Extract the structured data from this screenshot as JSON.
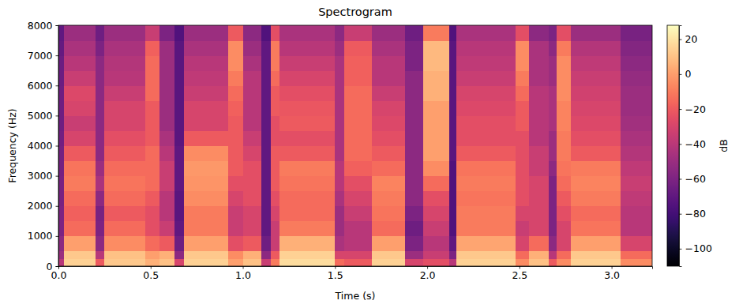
{
  "chart_data": {
    "type": "heatmap",
    "title": "Spectrogram",
    "xlabel": "Time (s)",
    "ylabel": "Frequency (Hz)",
    "xlim": [
      0,
      3.22
    ],
    "ylim": [
      0,
      8000
    ],
    "xticks": [
      {
        "value": 0,
        "label": "0.0"
      },
      0.5,
      {
        "value": 1,
        "label": "1.0"
      },
      1.5,
      {
        "value": 2,
        "label": "2.0"
      },
      2.5,
      {
        "value": 3,
        "label": "3.0"
      }
    ],
    "yticks": [
      0,
      1000,
      2000,
      3000,
      4000,
      5000,
      6000,
      7000,
      8000
    ],
    "x_bins": [
      0,
      0.03,
      0.2,
      0.25,
      0.47,
      0.55,
      0.63,
      0.68,
      0.92,
      1.0,
      1.1,
      1.15,
      1.2,
      1.5,
      1.55,
      1.7,
      1.88,
      1.98,
      2.12,
      2.16,
      2.48,
      2.55,
      2.66,
      2.7,
      2.78,
      3.05,
      3.22
    ],
    "y_bins": [
      0,
      250,
      500,
      1000,
      1500,
      2000,
      2500,
      3000,
      3500,
      4000,
      4500,
      5000,
      5500,
      6000,
      6500,
      7000,
      7500,
      8000
    ],
    "cells": [
      [
        -40,
        -50,
        -55,
        -60,
        -60,
        -62,
        -62,
        -63,
        -63,
        -64,
        -65,
        -65,
        -65,
        -66,
        -66,
        -68,
        -70
      ],
      [
        15,
        12,
        0,
        -15,
        -18,
        -15,
        -10,
        -12,
        -20,
        -30,
        -35,
        -30,
        -28,
        -35,
        -40,
        -45,
        -50
      ],
      [
        -20,
        -40,
        -55,
        -60,
        -62,
        -55,
        -45,
        -50,
        -55,
        -55,
        -55,
        -55,
        -55,
        -55,
        -55,
        -60,
        -65
      ],
      [
        12,
        10,
        -5,
        -15,
        -20,
        -15,
        -12,
        -15,
        -20,
        -25,
        -30,
        -30,
        -35,
        -40,
        -42,
        -45,
        -50
      ],
      [
        5,
        0,
        -15,
        -25,
        -25,
        -20,
        -15,
        -15,
        -15,
        -20,
        -20,
        -20,
        -15,
        -15,
        -15,
        -18,
        -35
      ],
      [
        10,
        5,
        -20,
        -35,
        -40,
        -40,
        -35,
        -35,
        -40,
        -45,
        -50,
        -50,
        -50,
        -50,
        -50,
        -50,
        -60
      ],
      [
        -30,
        -55,
        -65,
        -70,
        -72,
        -72,
        -70,
        -70,
        -70,
        -72,
        -72,
        -72,
        -72,
        -72,
        -72,
        -72,
        -75
      ],
      [
        15,
        12,
        0,
        -10,
        -10,
        -5,
        -3,
        -2,
        -5,
        -20,
        -30,
        -30,
        -35,
        -38,
        -40,
        -45,
        -50
      ],
      [
        0,
        -5,
        -25,
        -35,
        -35,
        -30,
        -25,
        -20,
        -20,
        -20,
        -20,
        -18,
        -15,
        -10,
        -5,
        -5,
        -20
      ],
      [
        10,
        5,
        -20,
        -30,
        -30,
        -25,
        -25,
        -25,
        -30,
        -35,
        -40,
        -40,
        -40,
        -40,
        -45,
        -50,
        -55
      ],
      [
        -35,
        -55,
        -65,
        -70,
        -70,
        -70,
        -70,
        -70,
        -70,
        -70,
        -70,
        -70,
        -70,
        -70,
        -70,
        -70,
        -75
      ],
      [
        -10,
        -20,
        -35,
        -35,
        -30,
        -25,
        -20,
        -20,
        -20,
        -25,
        -25,
        -20,
        -20,
        -15,
        -10,
        -10,
        -25
      ],
      [
        18,
        15,
        5,
        -10,
        -15,
        -15,
        -12,
        -10,
        -20,
        -25,
        -20,
        -22,
        -25,
        -30,
        -35,
        -40,
        -45
      ],
      [
        -15,
        -30,
        -45,
        -50,
        -50,
        -45,
        -40,
        -40,
        -45,
        -45,
        -45,
        -45,
        -45,
        -45,
        -45,
        -50,
        -55
      ],
      [
        -20,
        -30,
        -40,
        -40,
        -35,
        -30,
        -25,
        -18,
        -15,
        -15,
        -15,
        -15,
        -15,
        -18,
        -18,
        -20,
        -35
      ],
      [
        15,
        12,
        0,
        -15,
        -12,
        -10,
        -8,
        -15,
        -20,
        -25,
        -28,
        -30,
        -35,
        -40,
        -40,
        -45,
        -50
      ],
      [
        -30,
        -50,
        -60,
        -65,
        -60,
        -55,
        -55,
        -55,
        -55,
        -55,
        -55,
        -55,
        -55,
        -55,
        -60,
        -60,
        -65
      ],
      [
        -25,
        -35,
        -40,
        -35,
        -30,
        -25,
        -15,
        -5,
        0,
        0,
        0,
        0,
        5,
        5,
        8,
        8,
        -10
      ],
      [
        -40,
        -60,
        -70,
        -75,
        -75,
        -75,
        -75,
        -75,
        -72,
        -72,
        -72,
        -72,
        -72,
        -72,
        -72,
        -72,
        -75
      ],
      [
        15,
        12,
        2,
        -10,
        -10,
        -12,
        -10,
        -12,
        -20,
        -25,
        -25,
        -28,
        -30,
        -35,
        -38,
        -40,
        -45
      ],
      [
        -5,
        -15,
        -30,
        -35,
        -30,
        -25,
        -25,
        -25,
        -25,
        -25,
        -20,
        -20,
        -15,
        -10,
        -5,
        -5,
        -25
      ],
      [
        10,
        5,
        -15,
        -30,
        -30,
        -30,
        -30,
        -35,
        -35,
        -40,
        -40,
        -40,
        -40,
        -45,
        -45,
        -45,
        -55
      ],
      [
        -20,
        -40,
        -55,
        -60,
        -60,
        -60,
        -60,
        -55,
        -50,
        -50,
        -45,
        -45,
        -45,
        -50,
        -50,
        -55,
        -60
      ],
      [
        -5,
        -15,
        -30,
        -30,
        -25,
        -20,
        -15,
        -12,
        -10,
        -10,
        -8,
        -8,
        -5,
        -5,
        -5,
        -10,
        -25
      ],
      [
        15,
        12,
        0,
        -12,
        -15,
        -10,
        -8,
        -10,
        -20,
        -25,
        -28,
        -30,
        -32,
        -35,
        -38,
        -42,
        -50
      ],
      [
        -5,
        -15,
        -30,
        -40,
        -40,
        -38,
        -35,
        -38,
        -42,
        -45,
        -48,
        -50,
        -50,
        -52,
        -55,
        -58,
        -62
      ]
    ],
    "colorbar": {
      "label": "dB",
      "range": [
        -110,
        28
      ],
      "ticks": [
        20,
        0,
        {
          "value": -20,
          "label": "−20"
        },
        {
          "value": -40,
          "label": "−40"
        },
        {
          "value": -60,
          "label": "−60"
        },
        {
          "value": -80,
          "label": "−80"
        },
        {
          "value": -100,
          "label": "−100"
        }
      ]
    }
  }
}
